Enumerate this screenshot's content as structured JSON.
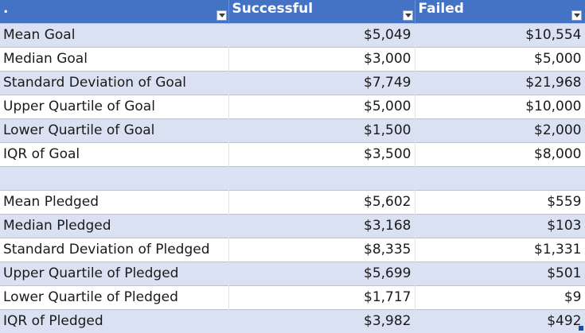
{
  "header": {
    "col1": ".",
    "col2": "Successful",
    "col3": "Failed"
  },
  "rows": [
    {
      "label": "Mean Goal",
      "successful": "$5,049",
      "failed": "$10,554"
    },
    {
      "label": "Median Goal",
      "successful": "$3,000",
      "failed": "$5,000"
    },
    {
      "label": "Standard Deviation of Goal",
      "successful": "$7,749",
      "failed": "$21,968"
    },
    {
      "label": "Upper Quartile of Goal",
      "successful": "$5,000",
      "failed": "$10,000"
    },
    {
      "label": "Lower Quartile of Goal",
      "successful": "$1,500",
      "failed": "$2,000"
    },
    {
      "label": "IQR of Goal",
      "successful": "$3,500",
      "failed": "$8,000"
    },
    {
      "label": "",
      "successful": "",
      "failed": ""
    },
    {
      "label": "Mean Pledged",
      "successful": "$5,602",
      "failed": "$559"
    },
    {
      "label": "Median Pledged",
      "successful": "$3,168",
      "failed": "$103"
    },
    {
      "label": "Standard Deviation of Pledged",
      "successful": "$8,335",
      "failed": "$1,331"
    },
    {
      "label": "Upper Quartile of Pledged",
      "successful": "$5,699",
      "failed": "$501"
    },
    {
      "label": "Lower Quartile of Pledged",
      "successful": "$1,717",
      "failed": "$9"
    },
    {
      "label": "IQR of Pledged",
      "successful": "$3,982",
      "failed": "$492"
    }
  ],
  "colors": {
    "header_bg": "#4472c4",
    "band_bg": "#d9e1f2"
  },
  "icons": {
    "filter": "filter-dropdown-icon"
  }
}
